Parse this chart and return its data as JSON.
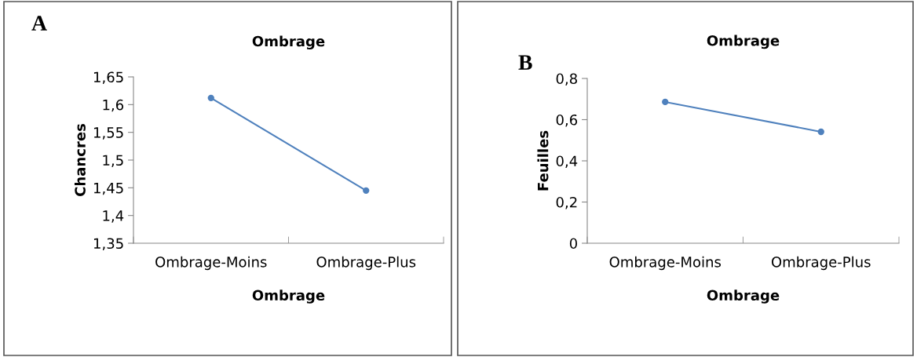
{
  "chart_data": [
    {
      "type": "line",
      "title": "Ombrage",
      "xlabel": "Ombrage",
      "ylabel": "Chancres",
      "annotations": [
        "A"
      ],
      "categories": [
        "Ombrage-Moins",
        "Ombrage-Plus"
      ],
      "series": [
        {
          "color": "#4f81bd",
          "values": [
            1.612,
            1.445
          ]
        }
      ],
      "marker": "circle",
      "ylim": [
        1.35,
        1.65
      ],
      "yticks": [
        {
          "value": 1.35,
          "label": "1,35"
        },
        {
          "value": 1.4,
          "label": "1,4"
        },
        {
          "value": 1.45,
          "label": "1,45"
        },
        {
          "value": 1.5,
          "label": "1,5"
        },
        {
          "value": 1.55,
          "label": "1,55"
        },
        {
          "value": 1.6,
          "label": "1,6"
        },
        {
          "value": 1.65,
          "label": "1,65"
        }
      ],
      "grid": false,
      "legend": false
    },
    {
      "type": "line",
      "title": "Ombrage",
      "xlabel": "Ombrage",
      "ylabel": "Feuilles",
      "annotations": [
        "B"
      ],
      "categories": [
        "Ombrage-Moins",
        "Ombrage-Plus"
      ],
      "series": [
        {
          "color": "#4f81bd",
          "values": [
            0.686,
            0.541
          ]
        }
      ],
      "marker": "circle",
      "ylim": [
        0,
        0.8
      ],
      "yticks": [
        0,
        {
          "value": 0.2,
          "label": "0,2"
        },
        {
          "value": 0.4,
          "label": "0,4"
        },
        {
          "value": 0.6,
          "label": "0,6"
        },
        {
          "value": 0.8,
          "label": "0,8"
        }
      ],
      "grid": false,
      "legend": false
    }
  ]
}
